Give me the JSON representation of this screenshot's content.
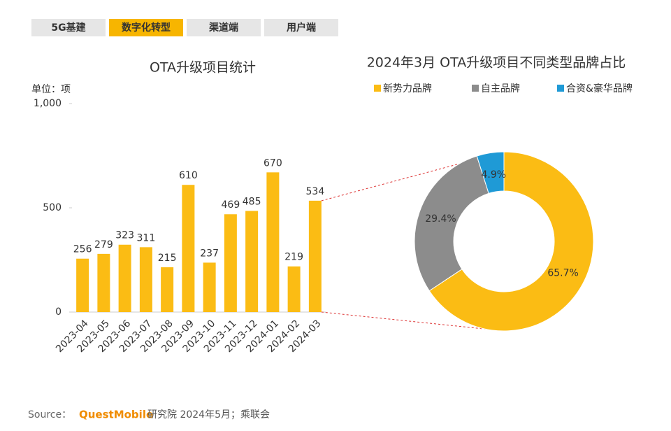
{
  "tabs": [
    "5G基建",
    "数字化转型",
    "渠道端",
    "用户端"
  ],
  "active_tab": 1,
  "chart_data": [
    {
      "type": "bar",
      "title": "OTA升级项目统计",
      "unit_label": "单位：项",
      "categories": [
        "2023-04",
        "2023-05",
        "2023-06",
        "2023-07",
        "2023-08",
        "2023-09",
        "2023-10",
        "2023-11",
        "2023-12",
        "2024-01",
        "2024-02",
        "2024-03"
      ],
      "values": [
        256,
        279,
        323,
        311,
        215,
        610,
        237,
        469,
        485,
        670,
        219,
        534
      ],
      "color": "#fbbc14",
      "ylim": [
        0,
        1000
      ],
      "yticks": [
        0,
        500,
        {
          "value": 1000,
          "label": "1,000"
        }
      ],
      "grid": false
    },
    {
      "type": "donut",
      "title": "2024年3月 OTA升级项目不同类型品牌占比",
      "categories": [
        "新势力品牌",
        "自主品牌",
        "合资&豪华品牌"
      ],
      "values": [
        65.7,
        29.4,
        4.9
      ],
      "value_labels": [
        "65.7%",
        "29.4%",
        "4.9%"
      ],
      "colors": [
        "#fbbc14",
        "#8c8c8c",
        "#1f9ad6"
      ],
      "legend": "top"
    }
  ],
  "source": {
    "label": "Source：",
    "brand": "QuestMobile",
    "text": "研究院 2024年5月；乘联会"
  }
}
